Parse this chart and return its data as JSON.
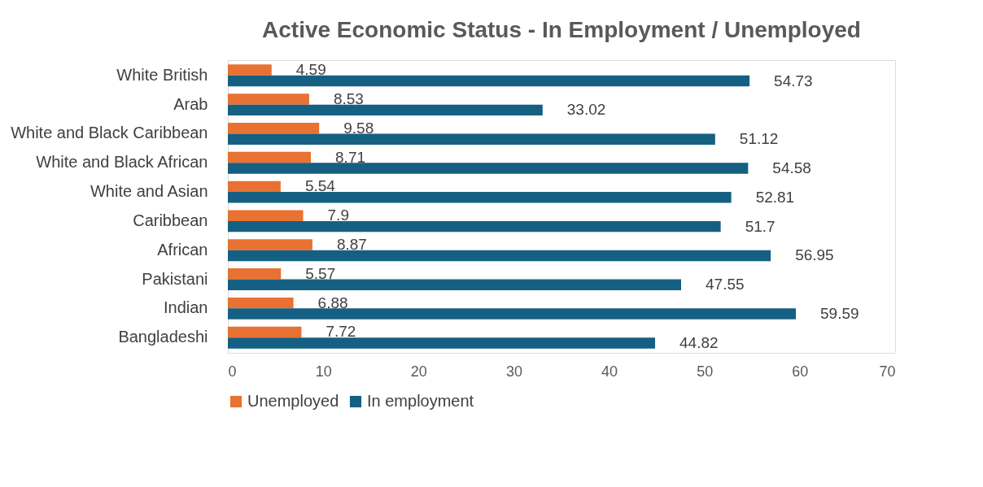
{
  "chart_data": {
    "type": "bar",
    "orientation": "horizontal",
    "title": "Active Economic Status - In Employment / Unemployed",
    "categories": [
      "White British",
      "Arab",
      "White and Black Caribbean",
      "White and Black African",
      "White and Asian",
      "Caribbean",
      "African",
      "Pakistani",
      "Indian",
      "Bangladeshi"
    ],
    "series": [
      {
        "name": "Unemployed",
        "color": "#e97132",
        "values": [
          4.59,
          8.53,
          9.58,
          8.71,
          5.54,
          7.9,
          8.87,
          5.57,
          6.88,
          7.72
        ]
      },
      {
        "name": "In employment",
        "color": "#156082",
        "values": [
          54.73,
          33.02,
          51.12,
          54.58,
          52.81,
          51.7,
          56.95,
          47.55,
          59.59,
          44.82
        ]
      }
    ],
    "xlim": [
      0,
      70
    ],
    "xticks": [
      0,
      10,
      20,
      30,
      40,
      50,
      60,
      70
    ],
    "data_labels": true,
    "grid": false,
    "legend": "bottom"
  }
}
